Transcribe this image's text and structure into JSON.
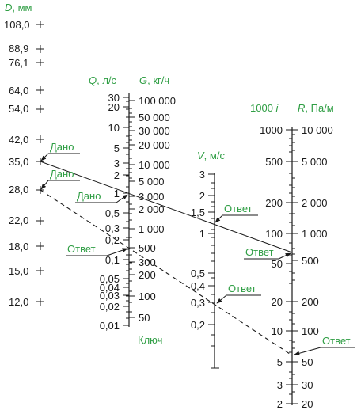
{
  "scales": {
    "D": {
      "title_var": "D",
      "title_unit": ", мм",
      "ticks": [
        "108,0",
        "88,9",
        "76,1",
        "64,0",
        "54,0",
        "42,0",
        "35,0",
        "28,0",
        "22,0",
        "18,0",
        "15,0",
        "12,0"
      ]
    },
    "Q": {
      "title_var": "Q",
      "title_unit": ", л/с",
      "ticks": [
        "30",
        "20",
        "10",
        "5",
        "3",
        "2",
        "1",
        "0,5",
        "0,3",
        "0,2",
        "0,1",
        "0,05",
        "0,04",
        "0,03",
        "0,02",
        "0,01"
      ]
    },
    "G": {
      "title_var": "G",
      "title_unit": ", кг/ч",
      "ticks": [
        "100 000",
        "50 000",
        "30 000",
        "20 000",
        "10 000",
        "5 000",
        "3 000",
        "2 000",
        "1 000",
        "500",
        "300",
        "200",
        "100",
        "50"
      ]
    },
    "V": {
      "title_var": "V",
      "title_unit": ", м/с",
      "ticks": [
        "3",
        "2",
        "1,5",
        "1",
        "0,5",
        "0,4",
        "0,3",
        "0,2"
      ]
    },
    "I": {
      "title_num": "1000 ",
      "title_var": "i",
      "ticks": [
        "1000",
        "500",
        "200",
        "100",
        "50",
        "20",
        "10",
        "5",
        "3",
        "2"
      ]
    },
    "R": {
      "title_var": "R",
      "title_unit": ", Па/м",
      "ticks": [
        "10 000",
        "5 000",
        "2 000",
        "1 000",
        "500",
        "200",
        "100",
        "50",
        "30",
        "20"
      ]
    }
  },
  "annotations": {
    "given": "Дано",
    "answer": "Ответ",
    "key": "Ключ"
  }
}
